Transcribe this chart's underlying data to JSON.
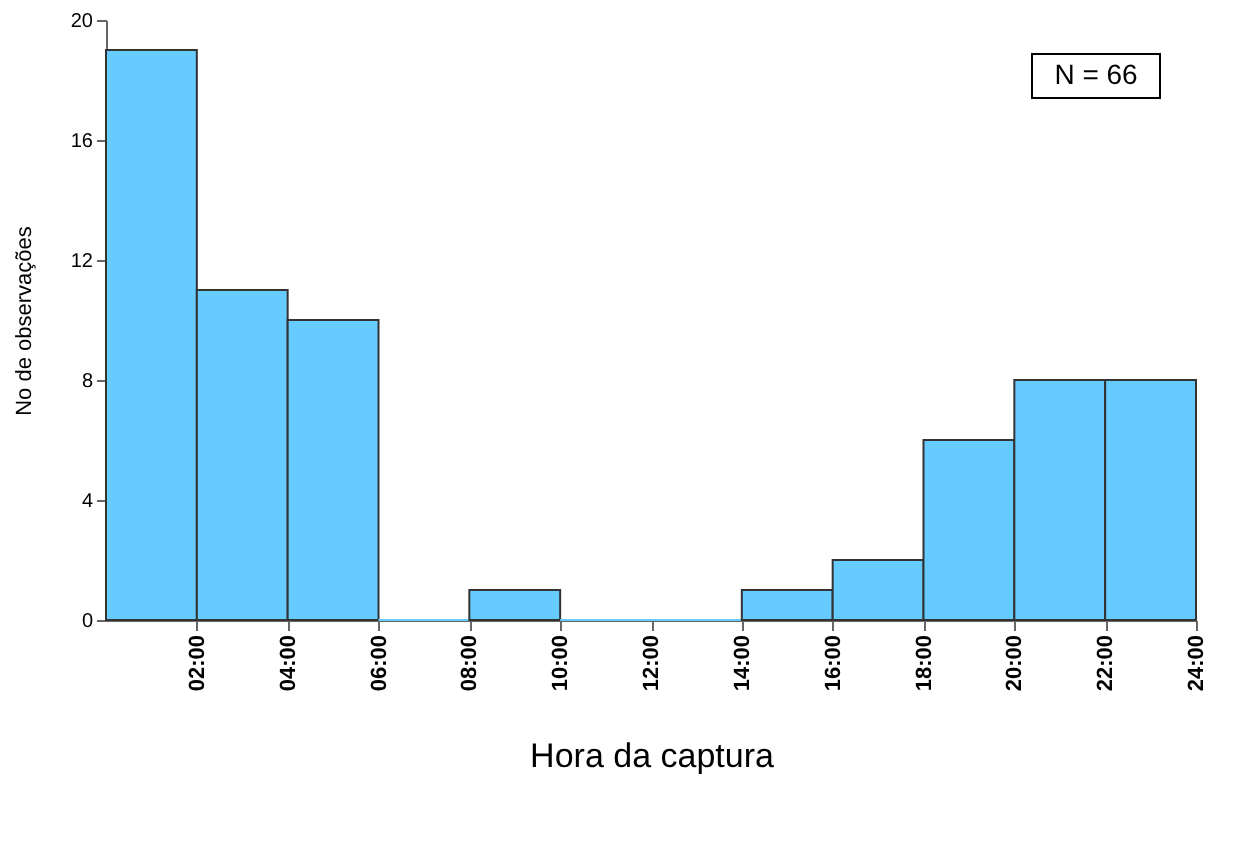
{
  "chart_data": {
    "type": "histogram",
    "bins": [
      0,
      2,
      4,
      6,
      8,
      10,
      12,
      14,
      16,
      18,
      20,
      22,
      24
    ],
    "values": [
      19,
      11,
      10,
      0,
      1,
      0,
      0,
      1,
      2,
      6,
      8,
      8
    ],
    "color": "#66ccff",
    "xlabel": "Hora da captura",
    "ylabel": "No de observações",
    "xlim": [
      0,
      24
    ],
    "xticks": [
      {
        "value": 2,
        "label": "02:00"
      },
      {
        "value": 4,
        "label": "04:00"
      },
      {
        "value": 6,
        "label": "06:00"
      },
      {
        "value": 8,
        "label": "08:00"
      },
      {
        "value": 10,
        "label": "10:00"
      },
      {
        "value": 12,
        "label": "12:00"
      },
      {
        "value": 14,
        "label": "14:00"
      },
      {
        "value": 16,
        "label": "16:00"
      },
      {
        "value": 18,
        "label": "18:00"
      },
      {
        "value": 20,
        "label": "20:00"
      },
      {
        "value": 22,
        "label": "22:00"
      },
      {
        "value": 24,
        "label": "24:00"
      }
    ],
    "ylim": [
      0,
      20
    ],
    "yticks": [
      0,
      4,
      8,
      12,
      16,
      20
    ],
    "grid": false,
    "annotations": [
      "N = 66"
    ]
  }
}
